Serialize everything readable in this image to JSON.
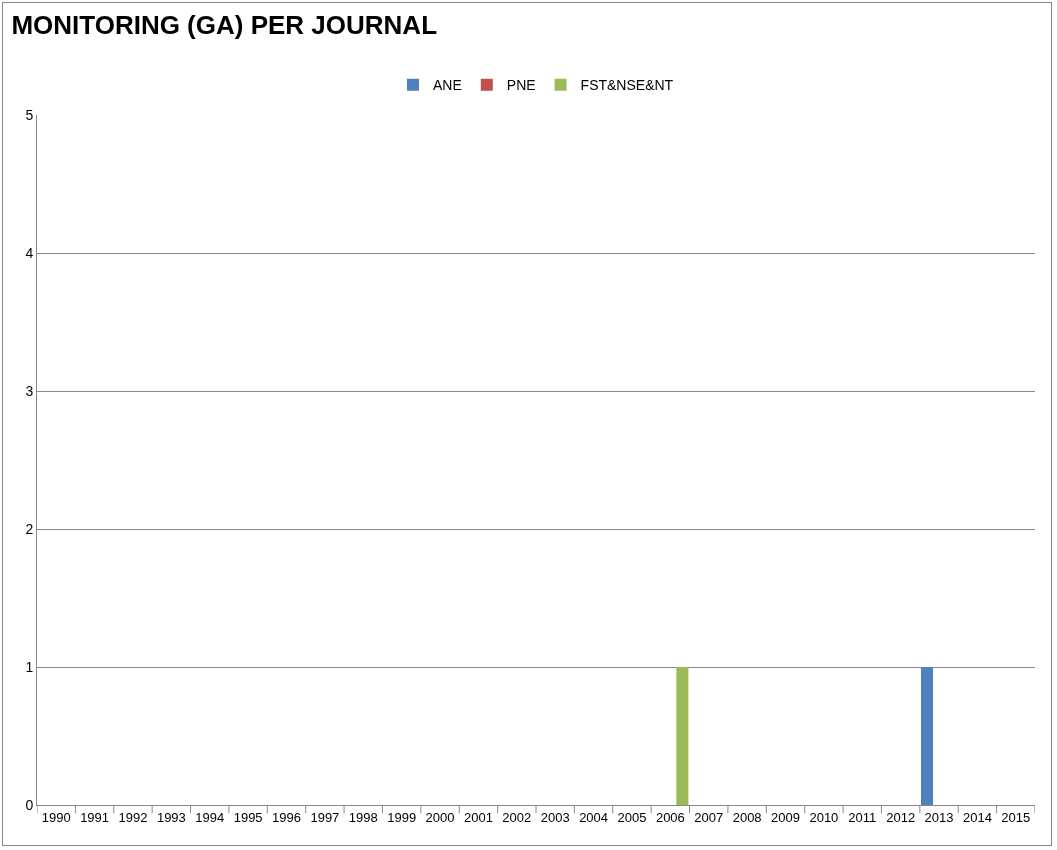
{
  "chart_data": {
    "type": "bar",
    "title": "MONITORING (GA) PER JOURNAL",
    "categories": [
      "1990",
      "1991",
      "1992",
      "1993",
      "1994",
      "1995",
      "1996",
      "1997",
      "1998",
      "1999",
      "2000",
      "2001",
      "2002",
      "2003",
      "2004",
      "2005",
      "2006",
      "2007",
      "2008",
      "2009",
      "2010",
      "2011",
      "2012",
      "2013",
      "2014",
      "2015"
    ],
    "series": [
      {
        "name": "ANE",
        "color": "#4f81bd",
        "values": [
          0,
          0,
          0,
          0,
          0,
          0,
          0,
          0,
          0,
          0,
          0,
          0,
          0,
          0,
          0,
          0,
          0,
          0,
          0,
          0,
          0,
          0,
          0,
          1,
          0,
          0
        ]
      },
      {
        "name": "PNE",
        "color": "#c0504d",
        "values": [
          0,
          0,
          0,
          0,
          0,
          0,
          0,
          0,
          0,
          0,
          0,
          0,
          0,
          0,
          0,
          0,
          0,
          0,
          0,
          0,
          0,
          0,
          0,
          0,
          0,
          0
        ]
      },
      {
        "name": "FST&NSE&NT",
        "color": "#9bbb59",
        "values": [
          0,
          0,
          0,
          0,
          0,
          0,
          0,
          0,
          0,
          0,
          0,
          0,
          0,
          0,
          0,
          0,
          1,
          0,
          0,
          0,
          0,
          0,
          0,
          0,
          0,
          0
        ]
      }
    ],
    "ylim": [
      0,
      5
    ],
    "yticks": [
      0,
      1,
      2,
      3,
      4,
      5
    ],
    "grid": "y",
    "legend": "top"
  }
}
